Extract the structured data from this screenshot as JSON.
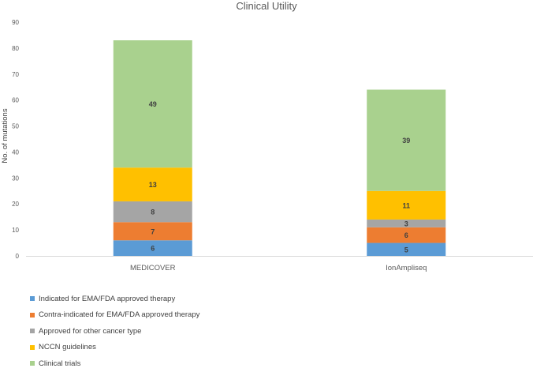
{
  "chart_data": {
    "type": "bar",
    "stacked": true,
    "title": "Clinical Utility",
    "xlabel": "",
    "ylabel": "No. of mutations",
    "ylim": [
      0,
      90
    ],
    "yticks": [
      0,
      10,
      20,
      30,
      40,
      50,
      60,
      70,
      80,
      90
    ],
    "grid": false,
    "legend_position": "bottom-left",
    "categories": [
      "MEDICOVER",
      "IonAmpliseq"
    ],
    "series": [
      {
        "name": "Indicated for EMA/FDA approved therapy",
        "color": "#5b9bd5",
        "values": [
          6,
          5
        ]
      },
      {
        "name": "Contra-indicated for EMA/FDA approved therapy",
        "color": "#ed7d31",
        "values": [
          7,
          6
        ]
      },
      {
        "name": "Approved for other cancer type",
        "color": "#a5a5a5",
        "values": [
          8,
          3
        ]
      },
      {
        "name": "NCCN guidelines",
        "color": "#ffc000",
        "values": [
          13,
          11
        ]
      },
      {
        "name": "Clinical trials",
        "color": "#a9d18e",
        "values": [
          49,
          39
        ]
      }
    ]
  }
}
